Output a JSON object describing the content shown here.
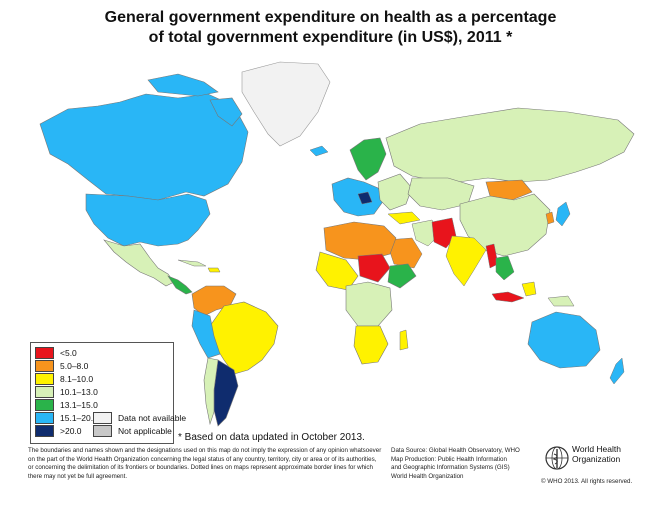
{
  "title": {
    "line1": "General government expenditure on health as a percentage",
    "line2": "of total government expenditure (in US$), 2011 *"
  },
  "legend": {
    "items": [
      {
        "label": "<5.0",
        "color": "#e8141c"
      },
      {
        "label": "5.0–8.0",
        "color": "#f7941d"
      },
      {
        "label": "8.1–10.0",
        "color": "#fff200"
      },
      {
        "label": "10.1–13.0",
        "color": "#d7f1b7"
      },
      {
        "label": "13.1–15.0",
        "color": "#2ab34a"
      },
      {
        "label": "15.1–20.0",
        "color": "#29b6f6"
      },
      {
        "label": ">20.0",
        "color": "#0f2c6e"
      }
    ],
    "extra": [
      {
        "label": "Data not available",
        "color": "#f2f2f2"
      },
      {
        "label": "Not applicable",
        "color": "#c8c8c8"
      }
    ]
  },
  "footnote": "* Based on data updated in October 2013.",
  "disclaimer": "The boundaries and names shown and the designations used on this map do not imply the expression of any opinion whatsoever on the part of the World Health Organization concerning the legal status of any country, territory, city or area or of its authorities, or concerning the delimitation of its frontiers or boundaries. Dotted lines on maps represent approximate border lines for which there may not yet be full agreement.",
  "source": {
    "line1": "Data Source: Global Health Observatory, WHO",
    "line2": "Map Production: Public Health Information",
    "line3": "and Geographic Information Systems (GIS)",
    "line4": "World Health Organization"
  },
  "logo": {
    "line1": "World Health",
    "line2": "Organization"
  },
  "copyright": "© WHO 2013. All rights reserved."
}
